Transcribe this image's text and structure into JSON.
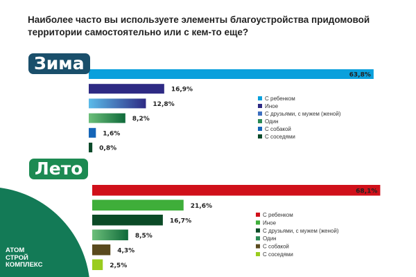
{
  "title": "Наиболее часто вы используете элементы благоустройства придомовой территории самостоятельно или с кем-то еще?",
  "logo": {
    "lines": [
      "АТОМ",
      "СТРОЙ",
      "КОМПЛЕКС"
    ]
  },
  "chart_data": [
    {
      "type": "bar",
      "orientation": "horizontal",
      "label": "Зима",
      "categories": [
        "С ребенком",
        "Иное",
        "С друзьями, с мужем (женой)",
        "Один",
        "С собакой",
        "С соседями"
      ],
      "values": [
        63.8,
        16.9,
        12.8,
        8.2,
        1.6,
        0.8
      ],
      "data_labels": [
        "63,8%",
        "16,9%",
        "12,8%",
        "8,2%",
        "1,6%",
        "0,8%"
      ],
      "colors": [
        "#0aa0dc",
        "#2e2a84",
        "#3d6fc0",
        "#2a8a55",
        "#1565b8",
        "#0b4a2a"
      ],
      "legend": "right"
    },
    {
      "type": "bar",
      "orientation": "horizontal",
      "label": "Лето",
      "categories": [
        "С ребенком",
        "Иное",
        "С друзьями, с мужем (женой)",
        "Один",
        "С собакой",
        "С соседями"
      ],
      "values": [
        68.1,
        21.6,
        16.7,
        8.5,
        4.3,
        2.5
      ],
      "data_labels": [
        "68,1%",
        "21,6%",
        "16,7%",
        "8,5%",
        "4,3%",
        "2,5%"
      ],
      "colors": [
        "#d0101a",
        "#3fae3a",
        "#0b4a26",
        "#2a8a55",
        "#5a4a1e",
        "#9acc1e"
      ],
      "legend": "right"
    }
  ]
}
